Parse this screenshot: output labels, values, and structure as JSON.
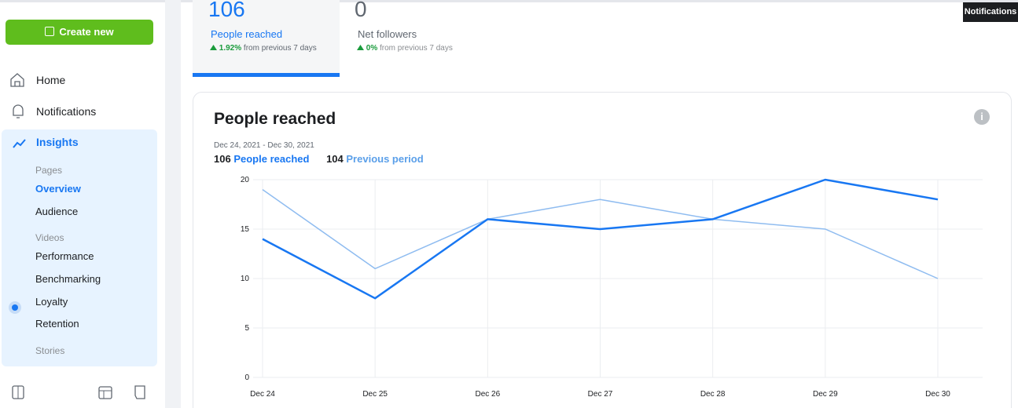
{
  "tooltip": "Notifications",
  "sidebar": {
    "create_button": "Create new",
    "nav": [
      "Home",
      "Notifications"
    ],
    "insights": {
      "title": "Insights",
      "groups": [
        {
          "heading": "Pages",
          "items": [
            "Overview",
            "Audience"
          ]
        },
        {
          "heading": "Videos",
          "items": [
            "Performance",
            "Benchmarking",
            "Loyalty",
            "Retention"
          ]
        },
        {
          "heading": "Stories",
          "items": []
        }
      ]
    }
  },
  "metrics": [
    {
      "value": 106,
      "label": "People reached",
      "change": "1.92%",
      "change_text": "from previous 7 days"
    },
    {
      "value": 0,
      "label": "Net followers",
      "change": "0%",
      "change_text": "from previous 7 days"
    }
  ],
  "chart_data": {
    "type": "line",
    "title": "People reached",
    "subtitle": "Dec 24, 2021 - Dec 30, 2021",
    "legend_totals": [
      106,
      104
    ],
    "categories": [
      "Dec 24",
      "Dec 25",
      "Dec 26",
      "Dec 27",
      "Dec 28",
      "Dec 29",
      "Dec 30"
    ],
    "series": [
      {
        "name": "People reached",
        "color": "#1877f2",
        "values": [
          14,
          8,
          16,
          15,
          16,
          20,
          18
        ]
      },
      {
        "name": "Previous period",
        "color": "#8fbcf0",
        "values": [
          19,
          11,
          16,
          18,
          16,
          15,
          10
        ]
      }
    ],
    "ylim": [
      0,
      20
    ],
    "yticks": [
      0,
      5,
      10,
      15,
      20
    ],
    "grid": true
  }
}
